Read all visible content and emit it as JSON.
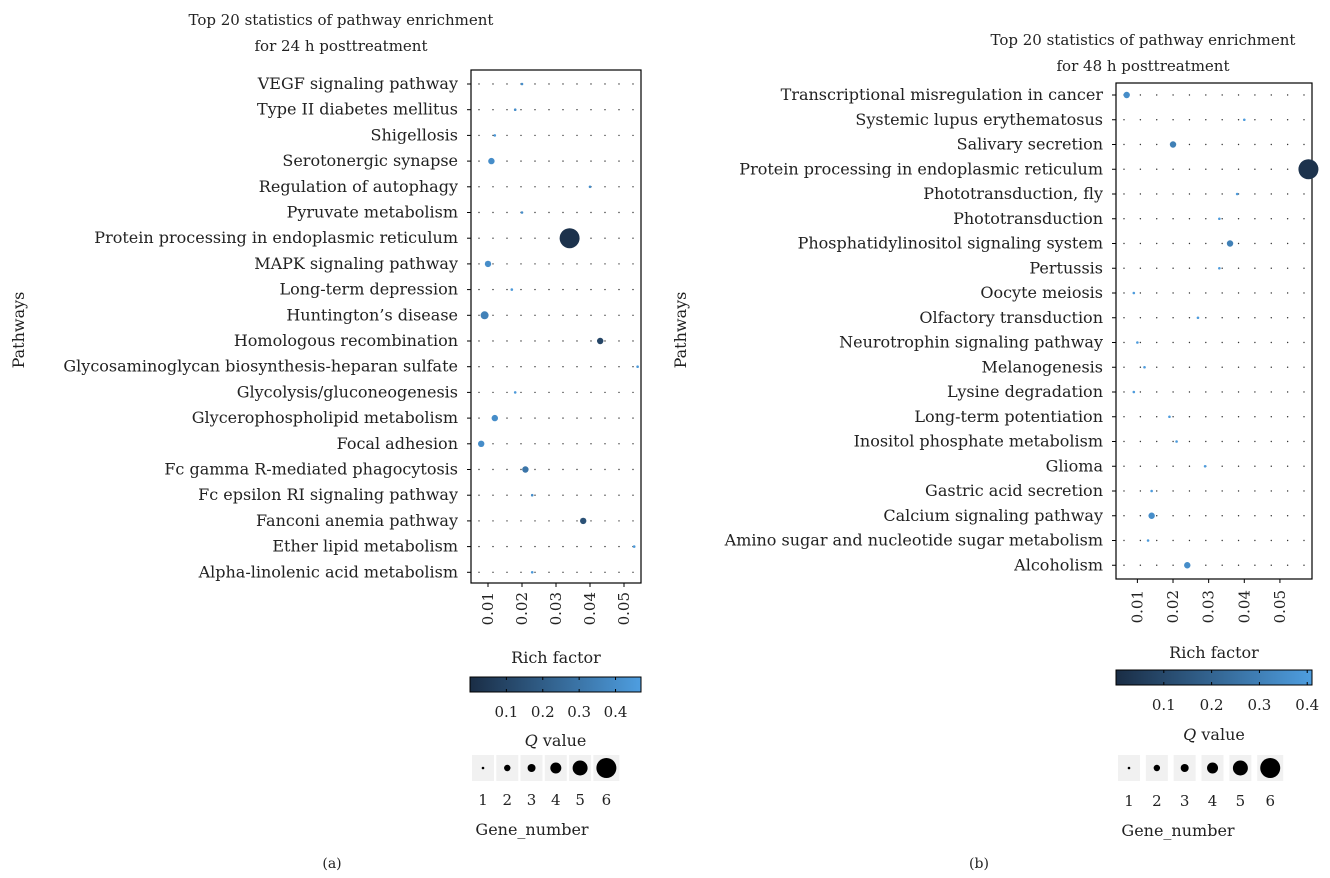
{
  "colors": {
    "low": "#1a2d45",
    "high": "#4e9ee0",
    "bubble_legend": "#000000",
    "legend_bg": "#f1f1f1",
    "grid_dot": "#333333"
  },
  "chart_data": [
    {
      "type": "scatter",
      "panel_label": "(a)",
      "title_lines": [
        "Top 20 statistics of pathway enrichment",
        "for 24 h posttreatment"
      ],
      "xlabel": "Rich factor",
      "ylabel": "Pathways",
      "xlim": [
        0.005,
        0.055
      ],
      "xticks": [
        "0.01",
        "0.02",
        "0.03",
        "0.04",
        "0.05"
      ],
      "xtick_values": [
        0.01,
        0.02,
        0.03,
        0.04,
        0.05
      ],
      "grid": "dotted",
      "color_legend_title": "Q value",
      "color_ticks": [
        "0.1",
        "0.2",
        "0.3",
        "0.4"
      ],
      "color_tick_values": [
        0.1,
        0.2,
        0.3,
        0.4
      ],
      "color_range": [
        0.0,
        0.47
      ],
      "size_legend_title": "Gene_number",
      "size_legend_values": [
        "1",
        "2",
        "3",
        "4",
        "5",
        "6"
      ],
      "pathways": [
        "VEGF signaling pathway",
        "Type II diabetes mellitus",
        "Shigellosis",
        "Serotonergic synapse",
        "Regulation of autophagy",
        "Pyruvate metabolism",
        "Protein processing in endoplasmic reticulum",
        "MAPK signaling pathway",
        "Long-term depression",
        "Huntington’s disease",
        "Homologous recombination",
        "Glycosaminoglycan biosynthesis-heparan sulfate",
        "Glycolysis/gluconeogenesis",
        "Glycerophospholipid metabolism",
        "Focal adhesion",
        "Fc gamma R-mediated phagocytosis",
        "Fc epsilon RI signaling pathway",
        "Fanconi anemia pathway",
        "Ether lipid metabolism",
        "Alpha-linolenic acid metabolism"
      ],
      "points": [
        {
          "rich_factor": 0.02,
          "q_value": 0.4,
          "gene_number": 1
        },
        {
          "rich_factor": 0.018,
          "q_value": 0.4,
          "gene_number": 1
        },
        {
          "rich_factor": 0.012,
          "q_value": 0.45,
          "gene_number": 1
        },
        {
          "rich_factor": 0.011,
          "q_value": 0.4,
          "gene_number": 2
        },
        {
          "rich_factor": 0.04,
          "q_value": 0.4,
          "gene_number": 1
        },
        {
          "rich_factor": 0.02,
          "q_value": 0.4,
          "gene_number": 1
        },
        {
          "rich_factor": 0.034,
          "q_value": 0.02,
          "gene_number": 6
        },
        {
          "rich_factor": 0.01,
          "q_value": 0.4,
          "gene_number": 2
        },
        {
          "rich_factor": 0.017,
          "q_value": 0.45,
          "gene_number": 1
        },
        {
          "rich_factor": 0.009,
          "q_value": 0.35,
          "gene_number": 3
        },
        {
          "rich_factor": 0.043,
          "q_value": 0.1,
          "gene_number": 2
        },
        {
          "rich_factor": 0.054,
          "q_value": 0.45,
          "gene_number": 1
        },
        {
          "rich_factor": 0.018,
          "q_value": 0.45,
          "gene_number": 1
        },
        {
          "rich_factor": 0.012,
          "q_value": 0.4,
          "gene_number": 2
        },
        {
          "rich_factor": 0.008,
          "q_value": 0.4,
          "gene_number": 2
        },
        {
          "rich_factor": 0.021,
          "q_value": 0.3,
          "gene_number": 2
        },
        {
          "rich_factor": 0.023,
          "q_value": 0.4,
          "gene_number": 1
        },
        {
          "rich_factor": 0.038,
          "q_value": 0.15,
          "gene_number": 2
        },
        {
          "rich_factor": 0.053,
          "q_value": 0.45,
          "gene_number": 1
        },
        {
          "rich_factor": 0.023,
          "q_value": 0.45,
          "gene_number": 1
        }
      ]
    },
    {
      "type": "scatter",
      "panel_label": "(b)",
      "title_lines": [
        "Top 20 statistics of pathway enrichment",
        "for 48 h posttreatment"
      ],
      "xlabel": "Rich factor",
      "ylabel": "Pathways",
      "xlim": [
        0.004,
        0.059
      ],
      "xticks": [
        "0.01",
        "0.02",
        "0.03",
        "0.04",
        "0.05"
      ],
      "xtick_values": [
        0.01,
        0.02,
        0.03,
        0.04,
        0.05
      ],
      "grid": "dotted",
      "color_legend_title": "Q value",
      "color_ticks": [
        "0.1",
        "0.2",
        "0.3",
        "0.4"
      ],
      "color_tick_values": [
        0.1,
        0.2,
        0.3,
        0.4
      ],
      "color_range": [
        0.0,
        0.41
      ],
      "size_legend_title": "Gene_number",
      "size_legend_values": [
        "1",
        "2",
        "3",
        "4",
        "5",
        "6"
      ],
      "pathways": [
        "Transcriptional misregulation in cancer",
        "Systemic lupus erythematosus",
        "Salivary secretion",
        "Protein processing in endoplasmic reticulum",
        "Phototransduction, fly",
        "Phototransduction",
        "Phosphatidylinositol signaling system",
        "Pertussis",
        "Oocyte meiosis",
        "Olfactory transduction",
        "Neurotrophin signaling pathway",
        "Melanogenesis",
        "Lysine degradation",
        "Long-term potentiation",
        "Inositol phosphate metabolism",
        "Glioma",
        "Gastric acid secretion",
        "Calcium signaling pathway",
        "Amino sugar and nucleotide sugar metabolism",
        "Alcoholism"
      ],
      "points": [
        {
          "rich_factor": 0.007,
          "q_value": 0.35,
          "gene_number": 2
        },
        {
          "rich_factor": 0.04,
          "q_value": 0.4,
          "gene_number": 1
        },
        {
          "rich_factor": 0.02,
          "q_value": 0.3,
          "gene_number": 2
        },
        {
          "rich_factor": 0.058,
          "q_value": 0.02,
          "gene_number": 6
        },
        {
          "rich_factor": 0.038,
          "q_value": 0.4,
          "gene_number": 1
        },
        {
          "rich_factor": 0.033,
          "q_value": 0.4,
          "gene_number": 1
        },
        {
          "rich_factor": 0.036,
          "q_value": 0.3,
          "gene_number": 2
        },
        {
          "rich_factor": 0.033,
          "q_value": 0.4,
          "gene_number": 1
        },
        {
          "rich_factor": 0.009,
          "q_value": 0.4,
          "gene_number": 1
        },
        {
          "rich_factor": 0.027,
          "q_value": 0.4,
          "gene_number": 1
        },
        {
          "rich_factor": 0.01,
          "q_value": 0.4,
          "gene_number": 1
        },
        {
          "rich_factor": 0.012,
          "q_value": 0.4,
          "gene_number": 1
        },
        {
          "rich_factor": 0.009,
          "q_value": 0.4,
          "gene_number": 1
        },
        {
          "rich_factor": 0.019,
          "q_value": 0.4,
          "gene_number": 1
        },
        {
          "rich_factor": 0.021,
          "q_value": 0.4,
          "gene_number": 1
        },
        {
          "rich_factor": 0.029,
          "q_value": 0.4,
          "gene_number": 1
        },
        {
          "rich_factor": 0.014,
          "q_value": 0.4,
          "gene_number": 1
        },
        {
          "rich_factor": 0.014,
          "q_value": 0.35,
          "gene_number": 2
        },
        {
          "rich_factor": 0.013,
          "q_value": 0.4,
          "gene_number": 1
        },
        {
          "rich_factor": 0.024,
          "q_value": 0.35,
          "gene_number": 2
        }
      ]
    }
  ]
}
